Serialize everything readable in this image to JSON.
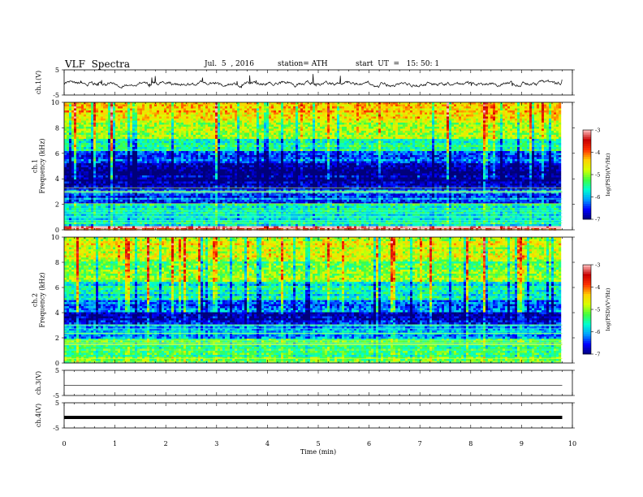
{
  "header": {
    "title": "VLF  Spectra",
    "date": "Jul.  5  , 2016",
    "station": "station= ATH",
    "start": "start  UT  =   15: 50: 1"
  },
  "colors": {
    "spectrogram_stops": [
      "#00007a",
      "#0000ff",
      "#00a0ff",
      "#00ffd0",
      "#40ff40",
      "#d8ff00",
      "#ffd000",
      "#ff3000",
      "#c80000",
      "#ffc0c0"
    ]
  },
  "chart_data": [
    {
      "id": "ch1-voltage",
      "type": "line",
      "ylabel": "ch.1(V)",
      "ylim": [
        -5,
        5
      ],
      "yticks": [
        "5",
        "-5"
      ],
      "xlim": [
        0,
        10
      ],
      "baseline": -0.5,
      "series": [
        {
          "x_range": [
            0,
            9.8
          ]
        }
      ]
    },
    {
      "id": "ch1-spectrogram",
      "type": "heatmap",
      "ylabel": "ch.1\nFrequency  (kHz)",
      "ylim": [
        0,
        10
      ],
      "yticks": [
        "0",
        "2",
        "4",
        "6",
        "8",
        "10"
      ],
      "xlim": [
        0,
        10
      ],
      "x_range": [
        0,
        9.8
      ],
      "colorbar": {
        "label": "log(PSD)(V²/Hz)",
        "range": [
          -7,
          -3
        ],
        "ticks": [
          "-3",
          "-4",
          "-5",
          "-6",
          "-7"
        ]
      },
      "bands": [
        {
          "f": [
            0,
            0.3
          ],
          "level": -3.1
        },
        {
          "f": [
            0.3,
            2.0
          ],
          "level": -5.6
        },
        {
          "f": [
            2.0,
            3.2
          ],
          "level": -6.4
        },
        {
          "f": [
            3.2,
            5.2
          ],
          "level": -6.9
        },
        {
          "f": [
            5.2,
            6.2
          ],
          "level": -6.3
        },
        {
          "f": [
            6.2,
            7.2
          ],
          "level": -5.6
        },
        {
          "f": [
            7.2,
            8.5
          ],
          "level": -5.0
        },
        {
          "f": [
            8.5,
            10
          ],
          "level": -4.5
        }
      ]
    },
    {
      "id": "ch2-spectrogram",
      "type": "heatmap",
      "ylabel": "ch.2\nFrequency  (kHz)",
      "ylim": [
        0,
        10
      ],
      "yticks": [
        "0",
        "2",
        "4",
        "6",
        "8",
        "10"
      ],
      "xlim": [
        0,
        10
      ],
      "x_range": [
        0,
        9.8
      ],
      "colorbar": {
        "label": "log(PSD)(V²/Hz)",
        "range": [
          -7,
          -3
        ],
        "ticks": [
          "-3",
          "-4",
          "-5",
          "-6",
          "-7"
        ]
      },
      "bands": [
        {
          "f": [
            0,
            0.5
          ],
          "level": -5.2
        },
        {
          "f": [
            0.5,
            2.0
          ],
          "level": -5.4
        },
        {
          "f": [
            2.0,
            3.0
          ],
          "level": -6.0
        },
        {
          "f": [
            3.0,
            4.0
          ],
          "level": -6.8
        },
        {
          "f": [
            4.0,
            5.0
          ],
          "level": -6.2
        },
        {
          "f": [
            5.0,
            6.5
          ],
          "level": -5.7
        },
        {
          "f": [
            6.5,
            8.2
          ],
          "level": -5.1
        },
        {
          "f": [
            8.2,
            10
          ],
          "level": -4.7
        }
      ]
    },
    {
      "id": "ch3-voltage",
      "type": "line",
      "ylabel": "ch.3(V)",
      "ylim": [
        -5,
        5
      ],
      "yticks": [
        "5",
        "-5"
      ],
      "xlim": [
        0,
        10
      ],
      "baseline": -1.0,
      "series": [
        {
          "x_range": [
            0,
            9.8
          ]
        }
      ]
    },
    {
      "id": "ch4-voltage",
      "type": "line",
      "ylabel": "ch.4(V)",
      "ylim": [
        -5,
        5
      ],
      "yticks": [
        "5",
        "-5"
      ],
      "xlim": [
        0,
        10
      ],
      "baseline": -0.8,
      "series": [
        {
          "x_range": [
            0,
            9.8
          ]
        }
      ]
    }
  ],
  "xaxis": {
    "label": "Time  (min)",
    "ticks": [
      "0",
      "1",
      "2",
      "3",
      "4",
      "5",
      "6",
      "7",
      "8",
      "9",
      "10"
    ]
  }
}
